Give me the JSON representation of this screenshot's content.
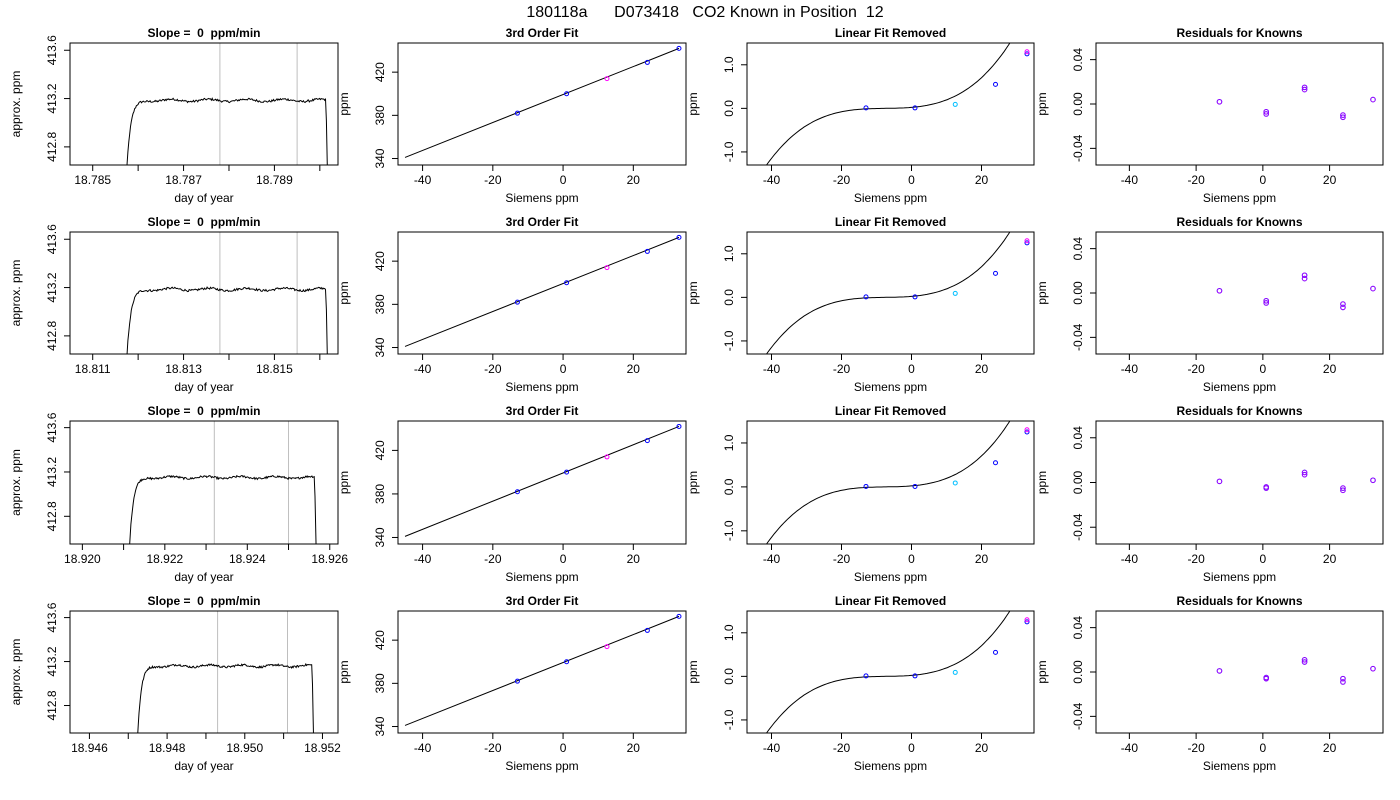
{
  "page_title": "180118a      D073418   CO2 Known in Position  12",
  "colors": {
    "trace": "#000000",
    "vline": "#bebebe",
    "point_blue": "#0000ff",
    "point_magenta": "#ff00ff",
    "point_red": "#ff0000",
    "point_cyan": "#00bfff"
  },
  "chart_data": [
    {
      "type": "line",
      "row": 1,
      "title": "Slope =  0  ppm/min",
      "xlabel": "day of year",
      "ylabel": "approx. ppm",
      "xlim": [
        18.7845,
        18.7904
      ],
      "ylim": [
        412.65,
        413.66
      ],
      "xticks": [
        18.785,
        18.786,
        18.787,
        18.788,
        18.789,
        18.79
      ],
      "xtick_labels": [
        "18.785",
        "",
        "18.787",
        "",
        "18.789",
        ""
      ],
      "yticks": [
        412.8,
        413.2,
        413.6
      ],
      "ytick_labels": [
        "412.8",
        "413.2",
        "413.6"
      ],
      "vlines": [
        18.7878,
        18.7895
      ],
      "trace": {
        "start": 18.7857,
        "end": 18.7902,
        "plateau": 413.185
      }
    },
    {
      "type": "line",
      "row": 1,
      "title": "3rd Order Fit",
      "xlabel": "Siemens ppm",
      "ylabel": "ppm",
      "xlim": [
        -47,
        35
      ],
      "ylim": [
        334,
        447
      ],
      "xticks": [
        -40,
        -20,
        0,
        20
      ],
      "yticks": [
        340,
        380,
        420
      ],
      "line": {
        "x": [
          -45,
          33
        ],
        "y": [
          341,
          442
        ]
      },
      "points": [
        {
          "x": -13,
          "y": 382,
          "color": "blue"
        },
        {
          "x": 1,
          "y": 400,
          "color": "blue"
        },
        {
          "x": 12.5,
          "y": 414,
          "color": "magenta"
        },
        {
          "x": 24,
          "y": 429,
          "color": "blue"
        },
        {
          "x": 33,
          "y": 442,
          "color": "blue"
        }
      ]
    },
    {
      "type": "line",
      "row": 1,
      "title": "Linear Fit Removed",
      "xlabel": "Siemens ppm",
      "ylabel": "ppm",
      "xlim": [
        -47,
        35
      ],
      "ylim": [
        -1.3,
        1.5
      ],
      "xticks": [
        -40,
        -20,
        0,
        20
      ],
      "yticks": [
        -1.0,
        0.0,
        1.0
      ],
      "ytick_labels": [
        "-1.0",
        "0.0",
        "1.0"
      ],
      "curve": {
        "x0": -45,
        "x1": 33,
        "root": -7.5,
        "k": 3.23e-05
      },
      "points": [
        {
          "x": -13,
          "y": 0.01,
          "color": "blue"
        },
        {
          "x": 1,
          "y": 0.01,
          "color": "blue"
        },
        {
          "x": 12.5,
          "y": 0.09,
          "color": "cyan"
        },
        {
          "x": 24,
          "y": 0.55,
          "color": "blue"
        },
        {
          "x": 33,
          "y": 1.25,
          "color": "blue"
        },
        {
          "x": 33,
          "y": 1.3,
          "color": "magenta"
        }
      ]
    },
    {
      "type": "scatter",
      "row": 1,
      "title": "Residuals for Knowns",
      "xlabel": "Siemens ppm",
      "ylabel": "ppm",
      "xlim": [
        -50,
        36
      ],
      "ylim": [
        -0.055,
        0.055
      ],
      "xticks": [
        -40,
        -20,
        0,
        20
      ],
      "yticks": [
        -0.04,
        0,
        0.04
      ],
      "ytick_labels": [
        "-0.04",
        "0.00",
        "0.04"
      ],
      "points": [
        {
          "x": -13,
          "y": 0.002
        },
        {
          "x": 1,
          "y": -0.007
        },
        {
          "x": 1,
          "y": -0.009
        },
        {
          "x": 12.5,
          "y": 0.015
        },
        {
          "x": 12.5,
          "y": 0.013
        },
        {
          "x": 24,
          "y": -0.01
        },
        {
          "x": 24,
          "y": -0.012
        },
        {
          "x": 33,
          "y": 0.004
        }
      ]
    },
    {
      "type": "line",
      "row": 2,
      "title": "Slope =  0  ppm/min",
      "xlabel": "day of year",
      "ylabel": "approx. ppm",
      "xlim": [
        18.8105,
        18.8164
      ],
      "ylim": [
        412.65,
        413.66
      ],
      "xticks": [
        18.811,
        18.812,
        18.813,
        18.814,
        18.815,
        18.816
      ],
      "xtick_labels": [
        "18.811",
        "",
        "18.813",
        "",
        "18.815",
        ""
      ],
      "yticks": [
        412.8,
        413.2,
        413.6
      ],
      "ytick_labels": [
        "412.8",
        "413.2",
        "413.6"
      ],
      "vlines": [
        18.8138,
        18.8155
      ],
      "trace": {
        "start": 18.8117,
        "end": 18.8162,
        "plateau": 413.185
      }
    },
    {
      "type": "line",
      "row": 2,
      "title": "3rd Order Fit",
      "xlabel": "Siemens ppm",
      "ylabel": "ppm",
      "xlim": [
        -47,
        35
      ],
      "ylim": [
        334,
        447
      ],
      "xticks": [
        -40,
        -20,
        0,
        20
      ],
      "yticks": [
        340,
        380,
        420
      ],
      "line": {
        "x": [
          -45,
          33
        ],
        "y": [
          341,
          442
        ]
      },
      "points": [
        {
          "x": -13,
          "y": 382,
          "color": "blue"
        },
        {
          "x": 1,
          "y": 400,
          "color": "blue"
        },
        {
          "x": 12.5,
          "y": 414,
          "color": "magenta"
        },
        {
          "x": 24,
          "y": 429,
          "color": "blue"
        },
        {
          "x": 33,
          "y": 442,
          "color": "blue"
        }
      ]
    },
    {
      "type": "line",
      "row": 2,
      "title": "Linear Fit Removed",
      "xlabel": "Siemens ppm",
      "ylabel": "ppm",
      "xlim": [
        -47,
        35
      ],
      "ylim": [
        -1.3,
        1.5
      ],
      "xticks": [
        -40,
        -20,
        0,
        20
      ],
      "yticks": [
        -1.0,
        0.0,
        1.0
      ],
      "ytick_labels": [
        "-1.0",
        "0.0",
        "1.0"
      ],
      "curve": {
        "x0": -45,
        "x1": 33,
        "root": -7.5,
        "k": 3.23e-05
      },
      "points": [
        {
          "x": -13,
          "y": 0.01,
          "color": "blue"
        },
        {
          "x": 1,
          "y": 0.01,
          "color": "blue"
        },
        {
          "x": 12.5,
          "y": 0.09,
          "color": "cyan"
        },
        {
          "x": 24,
          "y": 0.55,
          "color": "blue"
        },
        {
          "x": 33,
          "y": 1.25,
          "color": "blue"
        },
        {
          "x": 33,
          "y": 1.3,
          "color": "magenta"
        }
      ]
    },
    {
      "type": "scatter",
      "row": 2,
      "title": "Residuals for Knowns",
      "xlabel": "Siemens ppm",
      "ylabel": "ppm",
      "xlim": [
        -50,
        36
      ],
      "ylim": [
        -0.055,
        0.055
      ],
      "xticks": [
        -40,
        -20,
        0,
        20
      ],
      "yticks": [
        -0.04,
        0,
        0.04
      ],
      "ytick_labels": [
        "-0.04",
        "0.00",
        "0.04"
      ],
      "points": [
        {
          "x": -13,
          "y": 0.002
        },
        {
          "x": 1,
          "y": -0.007
        },
        {
          "x": 1,
          "y": -0.009
        },
        {
          "x": 12.5,
          "y": 0.016
        },
        {
          "x": 12.5,
          "y": 0.013
        },
        {
          "x": 24,
          "y": -0.01
        },
        {
          "x": 24,
          "y": -0.013
        },
        {
          "x": 33,
          "y": 0.004
        }
      ]
    },
    {
      "type": "line",
      "row": 3,
      "title": "Slope =  0  ppm/min",
      "xlabel": "day of year",
      "ylabel": "approx. ppm",
      "xlim": [
        18.9197,
        18.9262
      ],
      "ylim": [
        412.55,
        413.66
      ],
      "xticks": [
        18.92,
        18.921,
        18.922,
        18.923,
        18.924,
        18.925,
        18.926
      ],
      "xtick_labels": [
        "18.920",
        "",
        "18.922",
        "",
        "18.924",
        "",
        "18.926"
      ],
      "yticks": [
        412.8,
        413.2,
        413.6
      ],
      "ytick_labels": [
        "412.8",
        "413.2",
        "413.6"
      ],
      "vlines": [
        18.9232,
        18.925
      ],
      "trace": {
        "start": 18.9211,
        "end": 18.9257,
        "plateau": 413.15
      }
    },
    {
      "type": "line",
      "row": 3,
      "title": "3rd Order Fit",
      "xlabel": "Siemens ppm",
      "ylabel": "ppm",
      "xlim": [
        -47,
        35
      ],
      "ylim": [
        334,
        447
      ],
      "xticks": [
        -40,
        -20,
        0,
        20
      ],
      "yticks": [
        340,
        380,
        420
      ],
      "line": {
        "x": [
          -45,
          33
        ],
        "y": [
          341,
          442
        ]
      },
      "points": [
        {
          "x": -13,
          "y": 382,
          "color": "blue"
        },
        {
          "x": 1,
          "y": 400,
          "color": "blue"
        },
        {
          "x": 12.5,
          "y": 414,
          "color": "magenta"
        },
        {
          "x": 24,
          "y": 429,
          "color": "blue"
        },
        {
          "x": 33,
          "y": 442,
          "color": "blue"
        }
      ]
    },
    {
      "type": "line",
      "row": 3,
      "title": "Linear Fit Removed",
      "xlabel": "Siemens ppm",
      "ylabel": "ppm",
      "xlim": [
        -47,
        35
      ],
      "ylim": [
        -1.3,
        1.5
      ],
      "xticks": [
        -40,
        -20,
        0,
        20
      ],
      "yticks": [
        -1.0,
        0.0,
        1.0
      ],
      "ytick_labels": [
        "-1.0",
        "0.0",
        "1.0"
      ],
      "curve": {
        "x0": -45,
        "x1": 33,
        "root": -7.5,
        "k": 3.23e-05
      },
      "points": [
        {
          "x": -13,
          "y": 0.01,
          "color": "blue"
        },
        {
          "x": 1,
          "y": 0.01,
          "color": "blue"
        },
        {
          "x": 12.5,
          "y": 0.09,
          "color": "cyan"
        },
        {
          "x": 24,
          "y": 0.55,
          "color": "blue"
        },
        {
          "x": 33,
          "y": 1.25,
          "color": "blue"
        },
        {
          "x": 33,
          "y": 1.3,
          "color": "magenta"
        }
      ]
    },
    {
      "type": "scatter",
      "row": 3,
      "title": "Residuals for Knowns",
      "xlabel": "Siemens ppm",
      "ylabel": "ppm",
      "xlim": [
        -50,
        36
      ],
      "ylim": [
        -0.055,
        0.055
      ],
      "xticks": [
        -40,
        -20,
        0,
        20
      ],
      "yticks": [
        -0.04,
        0,
        0.04
      ],
      "ytick_labels": [
        "-0.04",
        "0.00",
        "0.04"
      ],
      "points": [
        {
          "x": -13,
          "y": 0.001
        },
        {
          "x": 1,
          "y": -0.004
        },
        {
          "x": 1,
          "y": -0.005
        },
        {
          "x": 12.5,
          "y": 0.009
        },
        {
          "x": 12.5,
          "y": 0.007
        },
        {
          "x": 24,
          "y": -0.005
        },
        {
          "x": 24,
          "y": -0.007
        },
        {
          "x": 33,
          "y": 0.002
        }
      ]
    },
    {
      "type": "line",
      "row": 4,
      "title": "Slope =  0  ppm/min",
      "xlabel": "day of year",
      "ylabel": "approx. ppm",
      "xlim": [
        18.9455,
        18.9524
      ],
      "ylim": [
        412.55,
        413.66
      ],
      "xticks": [
        18.946,
        18.947,
        18.948,
        18.949,
        18.95,
        18.951,
        18.952
      ],
      "xtick_labels": [
        "18.946",
        "",
        "18.948",
        "",
        "18.950",
        "",
        "18.952"
      ],
      "yticks": [
        412.8,
        413.2,
        413.6
      ],
      "ytick_labels": [
        "412.8",
        "413.2",
        "413.6"
      ],
      "vlines": [
        18.9493,
        18.9511
      ],
      "trace": {
        "start": 18.9472,
        "end": 18.9518,
        "plateau": 413.16
      }
    },
    {
      "type": "line",
      "row": 4,
      "title": "3rd Order Fit",
      "xlabel": "Siemens ppm",
      "ylabel": "ppm",
      "xlim": [
        -47,
        35
      ],
      "ylim": [
        334,
        447
      ],
      "xticks": [
        -40,
        -20,
        0,
        20
      ],
      "yticks": [
        340,
        380,
        420
      ],
      "line": {
        "x": [
          -45,
          33
        ],
        "y": [
          341,
          442
        ]
      },
      "points": [
        {
          "x": -13,
          "y": 382,
          "color": "blue"
        },
        {
          "x": 1,
          "y": 400,
          "color": "blue"
        },
        {
          "x": 12.5,
          "y": 414,
          "color": "magenta"
        },
        {
          "x": 24,
          "y": 429,
          "color": "blue"
        },
        {
          "x": 33,
          "y": 442,
          "color": "blue"
        }
      ]
    },
    {
      "type": "line",
      "row": 4,
      "title": "Linear Fit Removed",
      "xlabel": "Siemens ppm",
      "ylabel": "ppm",
      "xlim": [
        -47,
        35
      ],
      "ylim": [
        -1.3,
        1.5
      ],
      "xticks": [
        -40,
        -20,
        0,
        20
      ],
      "yticks": [
        -1.0,
        0.0,
        1.0
      ],
      "ytick_labels": [
        "-1.0",
        "0.0",
        "1.0"
      ],
      "curve": {
        "x0": -45,
        "x1": 33,
        "root": -7.5,
        "k": 3.23e-05
      },
      "points": [
        {
          "x": -13,
          "y": 0.01,
          "color": "blue"
        },
        {
          "x": 1,
          "y": 0.01,
          "color": "blue"
        },
        {
          "x": 12.5,
          "y": 0.09,
          "color": "cyan"
        },
        {
          "x": 24,
          "y": 0.55,
          "color": "blue"
        },
        {
          "x": 33,
          "y": 1.25,
          "color": "blue"
        },
        {
          "x": 33,
          "y": 1.3,
          "color": "magenta"
        }
      ]
    },
    {
      "type": "scatter",
      "row": 4,
      "title": "Residuals for Knowns",
      "xlabel": "Siemens ppm",
      "ylabel": "ppm",
      "xlim": [
        -50,
        36
      ],
      "ylim": [
        -0.055,
        0.055
      ],
      "xticks": [
        -40,
        -20,
        0,
        20
      ],
      "yticks": [
        -0.04,
        0,
        0.04
      ],
      "ytick_labels": [
        "-0.04",
        "0.00",
        "0.04"
      ],
      "points": [
        {
          "x": -13,
          "y": 0.001
        },
        {
          "x": 1,
          "y": -0.005
        },
        {
          "x": 1,
          "y": -0.006
        },
        {
          "x": 12.5,
          "y": 0.011
        },
        {
          "x": 12.5,
          "y": 0.009
        },
        {
          "x": 24,
          "y": -0.006
        },
        {
          "x": 24,
          "y": -0.009
        },
        {
          "x": 33,
          "y": 0.003
        }
      ]
    }
  ]
}
